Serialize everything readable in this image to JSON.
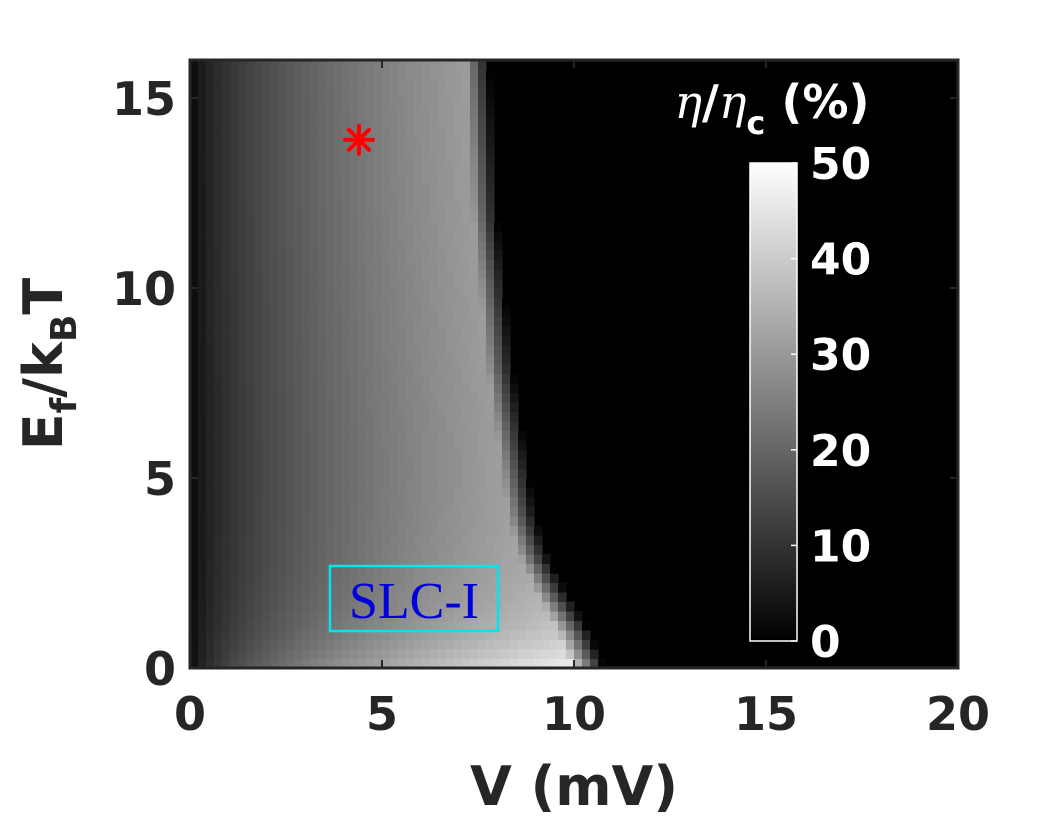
{
  "chart_data": {
    "type": "heatmap",
    "xlabel": "V (mV)",
    "ylabel": "E_f/k_B T",
    "xlim": [
      0,
      20
    ],
    "ylim": [
      0,
      16
    ],
    "xticks": [
      "0",
      "5",
      "10",
      "15",
      "20"
    ],
    "yticks": [
      "0",
      "5",
      "10",
      "15"
    ],
    "colormap": "gray",
    "colorbar": {
      "title": "η/η_c (%)",
      "range": [
        0,
        50
      ],
      "ticks": [
        "0",
        "10",
        "20",
        "30",
        "40",
        "50"
      ],
      "placement": "inside-right"
    },
    "z_description": "efficiency ratio, bright region for V between ~0 and ~10.5 mV",
    "boundary": {
      "E": [
        0,
        1,
        2,
        3,
        4,
        6,
        8,
        10,
        12,
        14,
        16
      ],
      "V": [
        10.8,
        10.4,
        9.8,
        9.3,
        9.0,
        8.7,
        8.4,
        8.2,
        8.0,
        7.9,
        7.8
      ]
    },
    "marker": {
      "symbol": "*",
      "color": "#ff0000",
      "x": 4.4,
      "y": 13.9
    },
    "annotations": [
      {
        "text": "SLC-I",
        "color": "#0000dd",
        "border": "#00e5ee"
      }
    ]
  }
}
